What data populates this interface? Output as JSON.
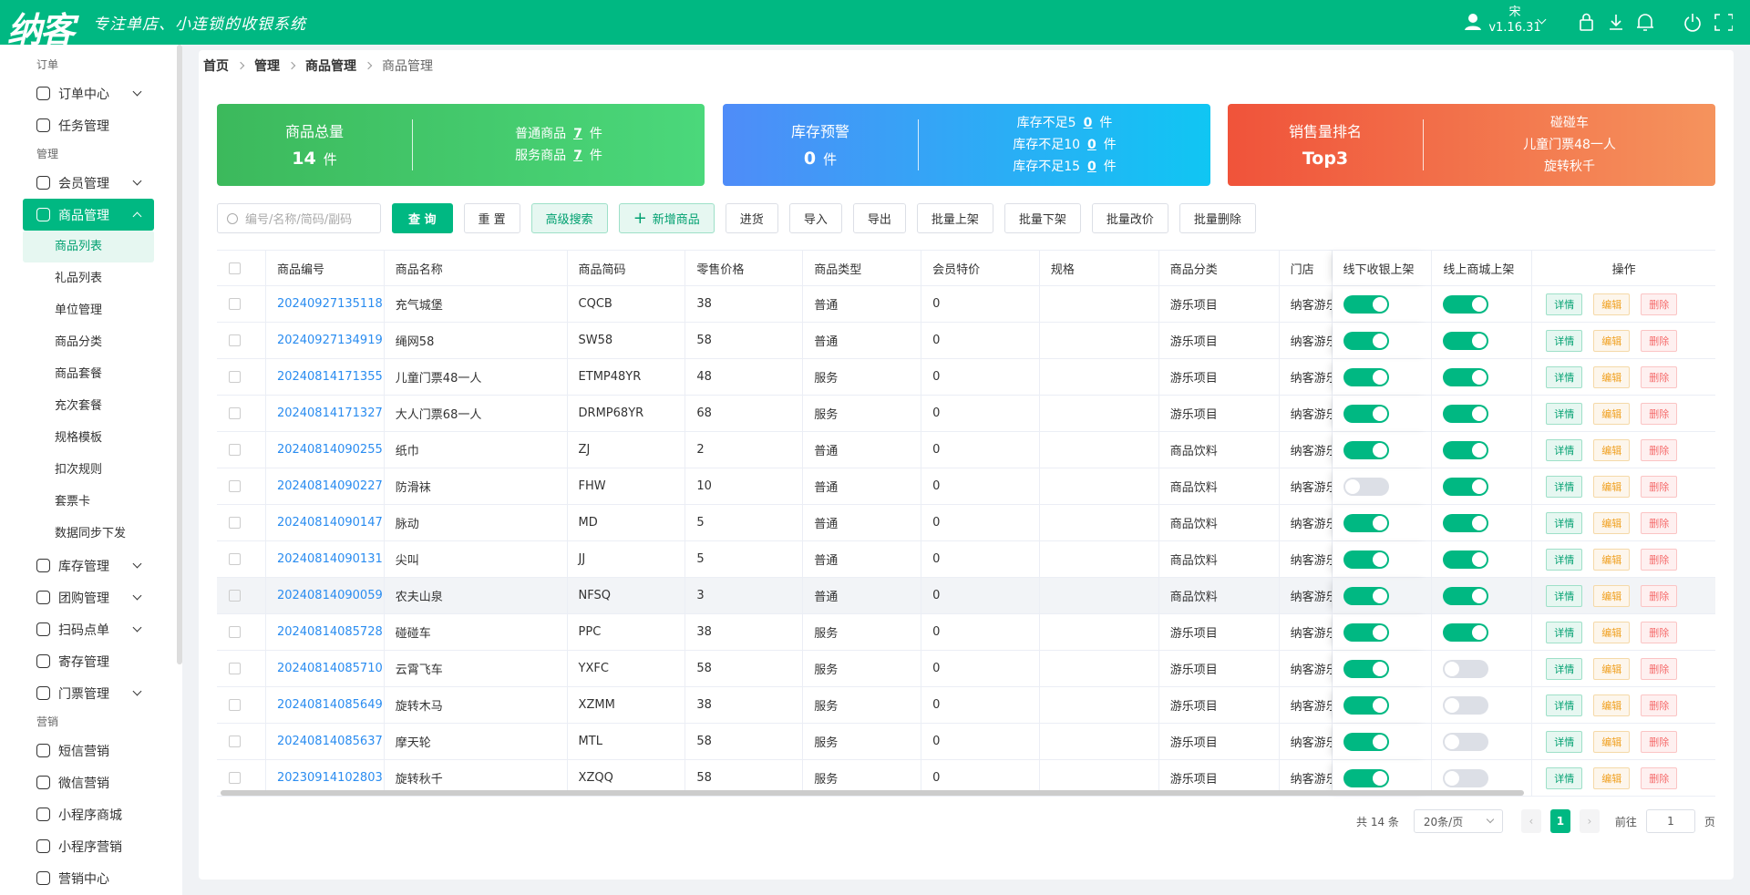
{
  "header": {
    "logo": "纳客",
    "slogan": "专注单店、小连锁的收银系统",
    "user": "宋",
    "version": "v1.16.31"
  },
  "sidebar": {
    "sections": [
      {
        "title": "订单",
        "items": [
          {
            "label": "订单中心",
            "expandable": true
          },
          {
            "label": "任务管理"
          }
        ]
      },
      {
        "title": "管理",
        "items": [
          {
            "label": "会员管理",
            "expandable": true
          },
          {
            "label": "商品管理",
            "expandable": true,
            "active": true,
            "children": [
              {
                "label": "商品列表",
                "active": true
              },
              {
                "label": "礼品列表"
              },
              {
                "label": "单位管理"
              },
              {
                "label": "商品分类"
              },
              {
                "label": "商品套餐"
              },
              {
                "label": "充次套餐"
              },
              {
                "label": "规格模板"
              },
              {
                "label": "扣次规则"
              },
              {
                "label": "套票卡"
              },
              {
                "label": "数据同步下发"
              }
            ]
          },
          {
            "label": "库存管理",
            "expandable": true
          },
          {
            "label": "团购管理",
            "expandable": true
          },
          {
            "label": "扫码点单",
            "expandable": true
          },
          {
            "label": "寄存管理"
          },
          {
            "label": "门票管理",
            "expandable": true
          }
        ]
      },
      {
        "title": "营销",
        "items": [
          {
            "label": "短信营销"
          },
          {
            "label": "微信营销"
          },
          {
            "label": "小程序商城"
          },
          {
            "label": "小程序营销"
          },
          {
            "label": "营销中心"
          }
        ]
      }
    ]
  },
  "breadcrumb": [
    "首页",
    "管理",
    "商品管理",
    "商品管理"
  ],
  "stats": [
    {
      "title": "商品总量",
      "value": "14",
      "unit": "件",
      "color": "green",
      "lines": [
        {
          "label": "普通商品",
          "value": "7",
          "unit": "件"
        },
        {
          "label": "服务商品",
          "value": "7",
          "unit": "件"
        }
      ]
    },
    {
      "title": "库存预警",
      "value": "0",
      "unit": "件",
      "color": "blue",
      "lines": [
        {
          "label": "库存不足5",
          "value": "0",
          "unit": "件"
        },
        {
          "label": "库存不足10",
          "value": "0",
          "unit": "件"
        },
        {
          "label": "库存不足15",
          "value": "0",
          "unit": "件"
        }
      ]
    },
    {
      "title": "销售量排名",
      "value": "Top3",
      "color": "orange",
      "lines": [
        {
          "label": "碰碰车"
        },
        {
          "label": "儿童门票48一人"
        },
        {
          "label": "旋转秋千"
        }
      ]
    }
  ],
  "toolbar": {
    "search_placeholder": "编号/名称/简码/副码",
    "buttons": [
      {
        "label": "查 询",
        "style": "primary"
      },
      {
        "label": "重 置"
      },
      {
        "label": "高级搜索",
        "style": "light"
      },
      {
        "label": "新增商品",
        "style": "light",
        "icon": "plus"
      },
      {
        "label": "进货"
      },
      {
        "label": "导入"
      },
      {
        "label": "导出"
      },
      {
        "label": "批量上架"
      },
      {
        "label": "批量下架"
      },
      {
        "label": "批量改价"
      },
      {
        "label": "批量删除"
      }
    ]
  },
  "table": {
    "columns": [
      "商品编号",
      "商品名称",
      "商品简码",
      "零售价格",
      "商品类型",
      "会员特价",
      "规格",
      "商品分类",
      "门店",
      "线下收银上架",
      "线上商城上架",
      "操作"
    ],
    "actions": [
      "详情",
      "编辑",
      "删除"
    ],
    "rows": [
      {
        "id": "20240927135118",
        "name": "充气城堡",
        "code": "CQCB",
        "price": 38,
        "type": "普通",
        "member_price": 0,
        "category": "游乐项目",
        "store": "纳客游乐",
        "offline": true,
        "online": true
      },
      {
        "id": "20240927134919",
        "name": "绳网58",
        "code": "SW58",
        "price": 58,
        "type": "普通",
        "member_price": 0,
        "category": "游乐项目",
        "store": "纳客游乐",
        "offline": true,
        "online": true
      },
      {
        "id": "20240814171355",
        "name": "儿童门票48一人",
        "code": "ETMP48YR",
        "price": 48,
        "type": "服务",
        "member_price": 0,
        "category": "游乐项目",
        "store": "纳客游乐",
        "offline": true,
        "online": true
      },
      {
        "id": "20240814171327",
        "name": "大人门票68一人",
        "code": "DRMP68YR",
        "price": 68,
        "type": "服务",
        "member_price": 0,
        "category": "游乐项目",
        "store": "纳客游乐",
        "offline": true,
        "online": true
      },
      {
        "id": "20240814090255",
        "name": "纸巾",
        "code": "ZJ",
        "price": 2,
        "type": "普通",
        "member_price": 0,
        "category": "商品饮料",
        "store": "纳客游乐",
        "offline": true,
        "online": true
      },
      {
        "id": "20240814090227",
        "name": "防滑袜",
        "code": "FHW",
        "price": 10,
        "type": "普通",
        "member_price": 0,
        "category": "商品饮料",
        "store": "纳客游乐",
        "offline": false,
        "online": true
      },
      {
        "id": "20240814090147",
        "name": "脉动",
        "code": "MD",
        "price": 5,
        "type": "普通",
        "member_price": 0,
        "category": "商品饮料",
        "store": "纳客游乐",
        "offline": true,
        "online": true
      },
      {
        "id": "20240814090131",
        "name": "尖叫",
        "code": "JJ",
        "price": 5,
        "type": "普通",
        "member_price": 0,
        "category": "商品饮料",
        "store": "纳客游乐",
        "offline": true,
        "online": true
      },
      {
        "id": "20240814090059",
        "name": "农夫山泉",
        "code": "NFSQ",
        "price": 3,
        "type": "普通",
        "member_price": 0,
        "category": "商品饮料",
        "store": "纳客游乐",
        "offline": true,
        "online": true,
        "hover": true
      },
      {
        "id": "20240814085728",
        "name": "碰碰车",
        "code": "PPC",
        "price": 38,
        "type": "服务",
        "member_price": 0,
        "category": "游乐项目",
        "store": "纳客游乐",
        "offline": true,
        "online": true
      },
      {
        "id": "20240814085710",
        "name": "云霄飞车",
        "code": "YXFC",
        "price": 58,
        "type": "服务",
        "member_price": 0,
        "category": "游乐项目",
        "store": "纳客游乐",
        "offline": true,
        "online": false
      },
      {
        "id": "20240814085649",
        "name": "旋转木马",
        "code": "XZMM",
        "price": 38,
        "type": "服务",
        "member_price": 0,
        "category": "游乐项目",
        "store": "纳客游乐",
        "offline": true,
        "online": false
      },
      {
        "id": "20240814085637",
        "name": "摩天轮",
        "code": "MTL",
        "price": 58,
        "type": "服务",
        "member_price": 0,
        "category": "游乐项目",
        "store": "纳客游乐",
        "offline": true,
        "online": false
      },
      {
        "id": "20230914102803",
        "name": "旋转秋千",
        "code": "XZQQ",
        "price": 58,
        "type": "服务",
        "member_price": 0,
        "category": "游乐项目",
        "store": "纳客游乐",
        "offline": true,
        "online": false
      }
    ]
  },
  "pagination": {
    "total": "共 14 条",
    "page_size": "20条/页",
    "current": "1",
    "goto": "前往",
    "goto_value": "1",
    "page_unit": "页"
  }
}
